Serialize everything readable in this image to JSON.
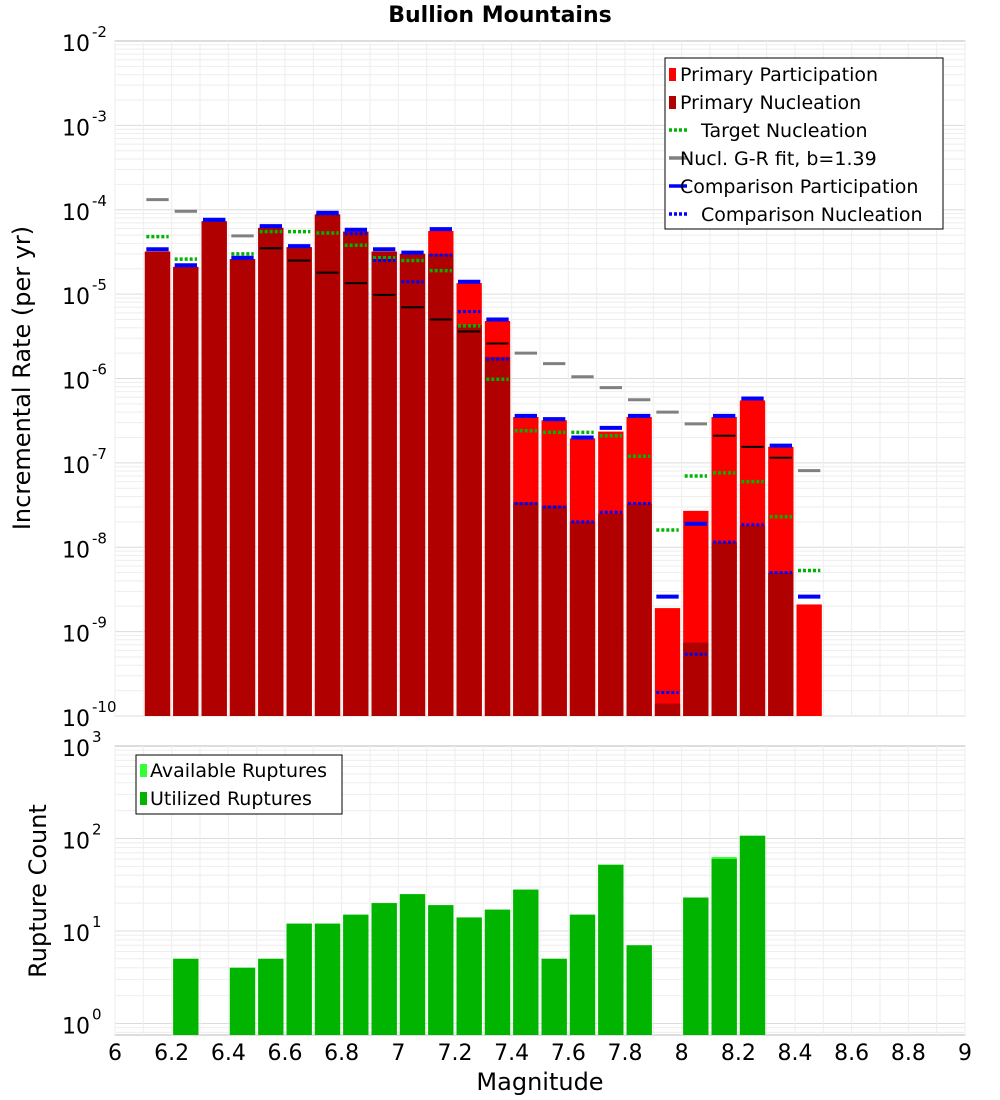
{
  "chart_data": [
    {
      "type": "bar",
      "title": "Bullion Mountains",
      "xlabel": "",
      "ylabel": "Incremental Rate (per yr)",
      "yscale": "log",
      "ylim": [
        1e-10,
        0.01
      ],
      "xlim": [
        6,
        9
      ],
      "bin_centers": [
        6.15,
        6.25,
        6.35,
        6.45,
        6.55,
        6.65,
        6.75,
        6.85,
        6.95,
        7.05,
        7.15,
        7.25,
        7.35,
        7.45,
        7.55,
        7.65,
        7.75,
        7.85,
        7.95,
        8.05,
        8.15,
        8.25,
        8.35,
        8.45
      ],
      "series": [
        {
          "name": "Primary Participation",
          "style": "bar",
          "color": "#ff0000",
          "values": [
            3.2e-05,
            2.1e-05,
            7.3e-05,
            2.6e-05,
            6.1e-05,
            3.6e-05,
            8.8e-05,
            5.5e-05,
            3.2e-05,
            3e-05,
            5.6e-05,
            1.35e-05,
            4.8e-06,
            3.5e-07,
            3.2e-07,
            1.95e-07,
            2.35e-07,
            3.5e-07,
            1.9e-09,
            2.7e-08,
            3.5e-07,
            5.5e-07,
            1.55e-07,
            2.1e-09
          ]
        },
        {
          "name": "Primary Nucleation",
          "style": "bar",
          "color": "#b00000",
          "values": [
            3.2e-05,
            2.1e-05,
            7.3e-05,
            2.6e-05,
            6.1e-05,
            3.6e-05,
            8.8e-05,
            5.5e-05,
            3.2e-05,
            3e-05,
            3e-05,
            4.3e-06,
            1.8e-06,
            3.4e-08,
            3.1e-08,
            2e-08,
            2.5e-08,
            3.3e-08,
            1.4e-10,
            7.4e-10,
            1.15e-08,
            1.8e-08,
            5e-09,
            null
          ]
        },
        {
          "name": "Target Nucleation",
          "style": "dotted-step",
          "color": "#00b400",
          "values": [
            4.8e-05,
            2.6e-05,
            7.5e-05,
            3e-05,
            5.5e-05,
            5.5e-05,
            5.3e-05,
            3.8e-05,
            2.7e-05,
            2.5e-05,
            1.9e-05,
            4.2e-06,
            9.8e-07,
            2.4e-07,
            2.3e-07,
            2.3e-07,
            2.1e-07,
            1.2e-07,
            1.6e-08,
            7e-08,
            7.6e-08,
            6e-08,
            2.3e-08,
            5.3e-09
          ]
        },
        {
          "name": "Nucl. G-R fit, b=1.39",
          "style": "step",
          "color": "#808080",
          "values": [
            0.000132,
            9.6e-05,
            null,
            4.9e-05,
            null,
            null,
            null,
            null,
            null,
            null,
            null,
            null,
            null,
            2e-06,
            1.5e-06,
            1.05e-06,
            7.8e-07,
            5.6e-07,
            4e-07,
            2.9e-07,
            null,
            null,
            null,
            8.1e-08
          ]
        },
        {
          "name": "Comparison Participation",
          "style": "step",
          "color": "#0000ff",
          "values": [
            3.4e-05,
            2.2e-05,
            7.6e-05,
            2.7e-05,
            6.4e-05,
            3.7e-05,
            9.2e-05,
            5.8e-05,
            3.4e-05,
            3.1e-05,
            5.9e-05,
            1.4e-05,
            5e-06,
            3.6e-07,
            3.3e-07,
            2e-07,
            2.6e-07,
            3.6e-07,
            2.6e-09,
            1.9e-08,
            3.6e-07,
            5.8e-07,
            1.6e-07,
            2.6e-09
          ]
        },
        {
          "name": "Comparison Nucleation",
          "style": "dotted-step",
          "color": "#0000ff",
          "values": [
            null,
            null,
            7.5e-05,
            null,
            null,
            null,
            8.9e-05,
            5.2e-05,
            2.5e-05,
            1.4e-05,
            2.9e-05,
            6.2e-06,
            1.7e-06,
            3.3e-08,
            3e-08,
            2e-08,
            2.6e-08,
            3.3e-08,
            1.9e-10,
            5.4e-10,
            1.15e-08,
            1.85e-08,
            5e-09,
            null
          ]
        }
      ],
      "extra_steps": {
        "color": "#000000",
        "values": [
          null,
          null,
          null,
          null,
          3.5e-05,
          2.5e-05,
          1.8e-05,
          1.35e-05,
          9.8e-06,
          7e-06,
          5e-06,
          3.6e-06,
          2.6e-06,
          null,
          null,
          null,
          null,
          null,
          null,
          null,
          2.1e-07,
          1.55e-07,
          1.15e-07,
          null
        ]
      },
      "legend": "top-right",
      "grid": true
    },
    {
      "type": "bar",
      "title": "",
      "xlabel": "Magnitude",
      "ylabel": "Rupture Count",
      "yscale": "log",
      "ylim": [
        0.75,
        1000
      ],
      "xlim": [
        6,
        9
      ],
      "x_ticks": [
        "6",
        "6.2",
        "6.4",
        "6.6",
        "6.8",
        "7",
        "7.2",
        "7.4",
        "7.6",
        "7.8",
        "8",
        "8.2",
        "8.4",
        "8.6",
        "8.8",
        "9"
      ],
      "bin_centers": [
        6.15,
        6.25,
        6.35,
        6.45,
        6.55,
        6.65,
        6.75,
        6.85,
        6.95,
        7.05,
        7.15,
        7.25,
        7.35,
        7.45,
        7.55,
        7.65,
        7.75,
        7.85,
        7.95,
        8.05,
        8.15,
        8.25,
        8.35,
        8.45
      ],
      "series": [
        {
          "name": "Available Ruptures",
          "color": "#33ff33",
          "values": [
            0,
            5,
            0,
            4,
            5,
            12,
            12,
            15,
            20,
            25,
            19,
            14,
            17,
            28,
            5,
            15,
            52,
            7,
            0,
            23,
            63,
            107,
            0,
            0
          ]
        },
        {
          "name": "Utilized Ruptures",
          "color": "#00b400",
          "values": [
            0,
            5,
            0,
            4,
            5,
            12,
            12,
            15,
            20,
            25,
            19,
            14,
            17,
            28,
            5,
            15,
            52,
            7,
            0,
            23,
            60,
            107,
            0,
            0
          ]
        }
      ],
      "legend": "top-left",
      "grid": true
    }
  ]
}
